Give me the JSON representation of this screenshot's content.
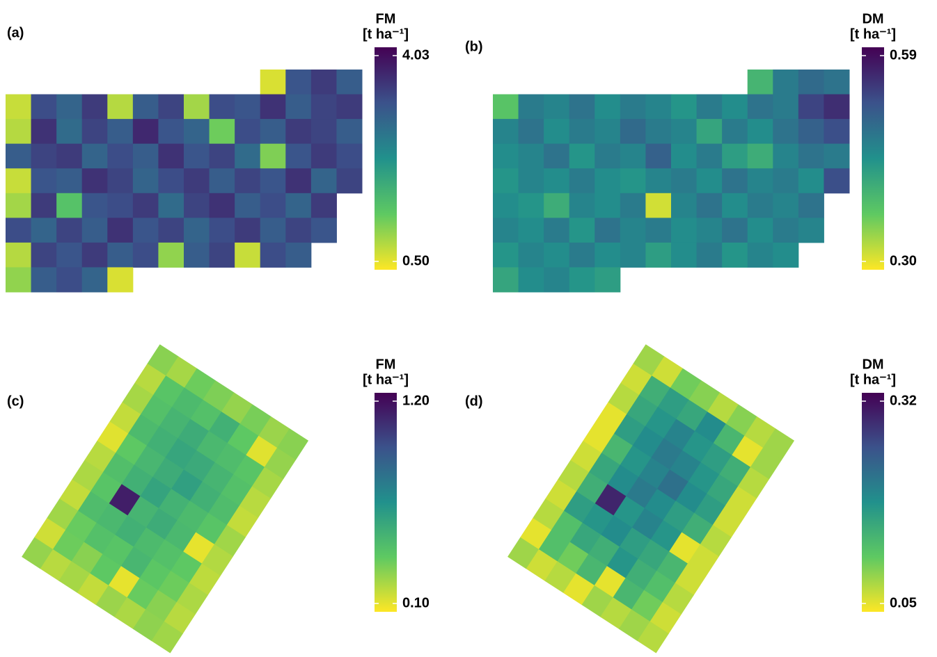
{
  "chart_data": [
    {
      "type": "heatmap",
      "panel_label": "(a)",
      "title": "FM",
      "unit": "[t ha⁻¹]",
      "clim": [
        0.5,
        4.03
      ],
      "cticks": [
        {
          "value": 4.03,
          "label": "4.03"
        },
        {
          "value": 0.5,
          "label": "0.50"
        }
      ],
      "values": [
        [
          null,
          null,
          null,
          null,
          null,
          null,
          null,
          null,
          null,
          null,
          0.7,
          3.1,
          3.4,
          3.0
        ],
        [
          0.8,
          3.2,
          2.9,
          3.4,
          0.9,
          3.0,
          3.3,
          1.0,
          3.2,
          3.1,
          3.5,
          3.0,
          3.3,
          3.4
        ],
        [
          0.9,
          3.5,
          2.8,
          3.3,
          3.0,
          3.6,
          3.1,
          2.9,
          1.3,
          3.2,
          3.0,
          3.4,
          3.3,
          3.0
        ],
        [
          3.0,
          3.3,
          3.4,
          2.9,
          3.2,
          3.0,
          3.5,
          3.1,
          3.3,
          2.8,
          1.2,
          3.1,
          3.4,
          3.2
        ],
        [
          0.8,
          3.1,
          3.0,
          3.5,
          3.3,
          2.9,
          3.2,
          3.4,
          3.0,
          3.3,
          3.1,
          3.5,
          2.9,
          3.3
        ],
        [
          1.0,
          3.4,
          1.5,
          3.1,
          3.2,
          3.4,
          2.8,
          3.3,
          3.5,
          3.0,
          3.2,
          2.9,
          3.4,
          null
        ],
        [
          3.2,
          2.9,
          3.3,
          3.0,
          3.5,
          3.1,
          3.3,
          2.9,
          3.2,
          3.4,
          3.0,
          3.3,
          3.1,
          null
        ],
        [
          0.9,
          3.3,
          3.1,
          3.4,
          3.0,
          3.2,
          1.1,
          3.0,
          3.3,
          0.8,
          3.2,
          3.0,
          null,
          null
        ],
        [
          1.1,
          3.0,
          3.2,
          2.9,
          0.7,
          null,
          null,
          null,
          null,
          null,
          null,
          null,
          null,
          null
        ]
      ]
    },
    {
      "type": "heatmap",
      "panel_label": "(b)",
      "title": "DM",
      "unit": "[t ha⁻¹]",
      "clim": [
        0.3,
        0.59
      ],
      "cticks": [
        {
          "value": 0.59,
          "label": "0.59"
        },
        {
          "value": 0.3,
          "label": "0.30"
        }
      ],
      "values": [
        [
          null,
          null,
          null,
          null,
          null,
          null,
          null,
          null,
          null,
          null,
          0.4,
          0.47,
          0.49,
          0.48
        ],
        [
          0.38,
          0.47,
          0.46,
          0.48,
          0.45,
          0.47,
          0.46,
          0.44,
          0.47,
          0.45,
          0.48,
          0.47,
          0.53,
          0.55
        ],
        [
          0.46,
          0.48,
          0.45,
          0.47,
          0.46,
          0.49,
          0.47,
          0.46,
          0.42,
          0.47,
          0.45,
          0.48,
          0.5,
          0.52
        ],
        [
          0.45,
          0.46,
          0.48,
          0.44,
          0.47,
          0.46,
          0.5,
          0.45,
          0.47,
          0.43,
          0.41,
          0.46,
          0.48,
          0.47
        ],
        [
          0.44,
          0.46,
          0.45,
          0.47,
          0.45,
          0.44,
          0.46,
          0.47,
          0.45,
          0.48,
          0.46,
          0.47,
          0.45,
          0.52
        ],
        [
          0.45,
          0.44,
          0.41,
          0.46,
          0.45,
          0.47,
          0.32,
          0.46,
          0.48,
          0.45,
          0.47,
          0.46,
          0.48,
          null
        ],
        [
          0.46,
          0.45,
          0.47,
          0.44,
          0.48,
          0.46,
          0.47,
          0.45,
          0.46,
          0.48,
          0.45,
          0.47,
          0.46,
          null
        ],
        [
          0.44,
          0.46,
          0.45,
          0.47,
          0.45,
          0.46,
          0.43,
          0.45,
          0.47,
          0.44,
          0.46,
          0.45,
          null,
          null
        ],
        [
          0.42,
          0.45,
          0.46,
          0.44,
          0.43,
          null,
          null,
          null,
          null,
          null,
          null,
          null,
          null,
          null
        ]
      ]
    },
    {
      "type": "heatmap",
      "panel_label": "(c)",
      "title": "FM",
      "unit": "[t ha⁻¹]",
      "clim": [
        0.1,
        1.2
      ],
      "cticks": [
        {
          "value": 1.2,
          "label": "1.20"
        },
        {
          "value": 0.1,
          "label": "0.10"
        }
      ],
      "values": [
        [
          0.3,
          0.25,
          0.35,
          0.32,
          0.28,
          0.33,
          0.27,
          0.3
        ],
        [
          0.22,
          0.4,
          0.45,
          0.42,
          0.5,
          0.38,
          0.15,
          0.28
        ],
        [
          0.25,
          0.42,
          0.48,
          0.52,
          0.46,
          0.44,
          0.4,
          0.25
        ],
        [
          0.2,
          0.45,
          0.5,
          0.55,
          0.53,
          0.48,
          0.42,
          0.22
        ],
        [
          0.15,
          0.38,
          0.47,
          0.52,
          0.58,
          0.5,
          0.44,
          0.2
        ],
        [
          0.22,
          0.43,
          0.5,
          0.56,
          0.49,
          0.45,
          0.4,
          0.26
        ],
        [
          0.24,
          0.4,
          1.1,
          0.48,
          0.52,
          0.46,
          0.14,
          0.23
        ],
        [
          0.2,
          0.44,
          0.46,
          0.5,
          0.45,
          0.42,
          0.38,
          0.21
        ],
        [
          0.26,
          0.36,
          0.42,
          0.4,
          0.47,
          0.39,
          0.35,
          0.24
        ],
        [
          0.18,
          0.35,
          0.3,
          0.38,
          0.14,
          0.36,
          0.3,
          0.22
        ],
        [
          0.28,
          0.22,
          0.25,
          0.2,
          0.27,
          0.24,
          0.29,
          0.26
        ]
      ]
    },
    {
      "type": "heatmap",
      "panel_label": "(d)",
      "title": "DM",
      "unit": "[t ha⁻¹]",
      "clim": [
        0.05,
        0.32
      ],
      "cticks": [
        {
          "value": 0.32,
          "label": "0.32"
        },
        {
          "value": 0.05,
          "label": "0.05"
        }
      ],
      "values": [
        [
          0.09,
          0.07,
          0.11,
          0.1,
          0.08,
          0.1,
          0.08,
          0.09
        ],
        [
          0.07,
          0.15,
          0.17,
          0.16,
          0.19,
          0.14,
          0.06,
          0.09
        ],
        [
          0.08,
          0.16,
          0.18,
          0.2,
          0.18,
          0.17,
          0.15,
          0.08
        ],
        [
          0.06,
          0.17,
          0.19,
          0.21,
          0.2,
          0.18,
          0.16,
          0.07
        ],
        [
          0.06,
          0.14,
          0.18,
          0.2,
          0.22,
          0.19,
          0.17,
          0.07
        ],
        [
          0.07,
          0.16,
          0.19,
          0.21,
          0.19,
          0.17,
          0.15,
          0.08
        ],
        [
          0.08,
          0.15,
          0.29,
          0.18,
          0.2,
          0.18,
          0.06,
          0.07
        ],
        [
          0.07,
          0.17,
          0.18,
          0.19,
          0.17,
          0.16,
          0.14,
          0.07
        ],
        [
          0.08,
          0.13,
          0.16,
          0.15,
          0.18,
          0.15,
          0.13,
          0.08
        ],
        [
          0.06,
          0.13,
          0.11,
          0.14,
          0.06,
          0.14,
          0.11,
          0.07
        ],
        [
          0.09,
          0.07,
          0.08,
          0.06,
          0.09,
          0.08,
          0.09,
          0.08
        ]
      ]
    }
  ]
}
